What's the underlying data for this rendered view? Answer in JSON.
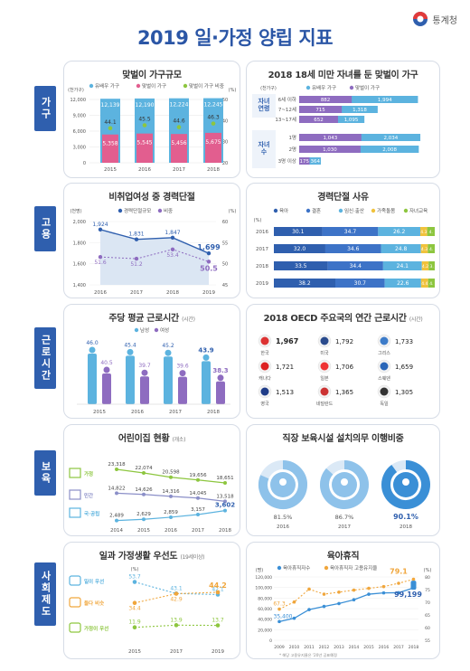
{
  "title": "2019 일·가정 양립 지표",
  "agency": "통계청",
  "sections": [
    "가구",
    "고용",
    "근로시간",
    "보육",
    "사회제도"
  ],
  "chart_data": [
    {
      "type": "bar",
      "title": "맞벌이 가구규모",
      "ylabel": "(천가구)",
      "y2label": "(%)",
      "categories": [
        "2015",
        "2016",
        "2017",
        "2018"
      ],
      "series": [
        {
          "name": "유배우 가구",
          "values": [
            12139,
            12190,
            12224,
            12245
          ]
        },
        {
          "name": "맞벌이 가구",
          "values": [
            5358,
            5545,
            5456,
            5675
          ]
        },
        {
          "name": "맞벌이 가구 비중",
          "values": [
            44.1,
            45.5,
            44.6,
            46.3
          ]
        }
      ],
      "yticks": [
        "12,000",
        "9,000",
        "6,000",
        "3,000",
        "0"
      ],
      "y2ticks": [
        "50",
        "40",
        "30",
        "20"
      ]
    },
    {
      "type": "bar",
      "title": "2018 18세 미만 자녀를 둔 맞벌이 가구",
      "unit": "(천가구)",
      "legend": [
        "유배우 가구",
        "맞벌이 가구"
      ],
      "group_labels": [
        "자녀 연령",
        "자녀 수"
      ],
      "categories": [
        "6세 이하",
        "7~12세",
        "13~17세",
        "1명",
        "2명",
        "3명 이상"
      ],
      "series": [
        {
          "name": "유배우 가구",
          "values": [
            1994,
            1318,
            1095,
            2034,
            2008,
            364
          ]
        },
        {
          "name": "맞벌이 가구",
          "values": [
            882,
            715,
            652,
            1043,
            1030,
            175
          ]
        }
      ]
    },
    {
      "type": "line",
      "title": "비취업여성 중 경력단절",
      "ylabel": "(천명)",
      "y2label": "(%)",
      "categories": [
        "2016",
        "2017",
        "2018",
        "2019"
      ],
      "series": [
        {
          "name": "경력단절규모",
          "values": [
            1924,
            1831,
            1847,
            1699
          ]
        },
        {
          "name": "비중",
          "values": [
            51.6,
            51.2,
            53.4,
            50.5
          ]
        }
      ],
      "yticks": [
        "2,000",
        "1,800",
        "1,600",
        "1,400"
      ],
      "y2ticks": [
        "60",
        "55",
        "50",
        "45"
      ]
    },
    {
      "type": "bar",
      "title": "경력단절 사유",
      "unit": "(%)",
      "legend": [
        "육아",
        "결혼",
        "임신·출산",
        "가족돌봄",
        "자녀교육"
      ],
      "categories": [
        "2016",
        "2017",
        "2018",
        "2019"
      ],
      "series": [
        {
          "name": "육아",
          "values": [
            30.1,
            32.0,
            33.5,
            38.2
          ]
        },
        {
          "name": "결혼",
          "values": [
            34.7,
            34.6,
            34.4,
            30.7
          ]
        },
        {
          "name": "임신·출산",
          "values": [
            26.2,
            24.8,
            24.1,
            22.6
          ]
        },
        {
          "name": "가족돌봄",
          "values": [
            4.3,
            4.3,
            4.2,
            4.4
          ]
        },
        {
          "name": "자녀교육",
          "values": [
            4.7,
            4.3,
            3.8,
            4.1
          ]
        }
      ],
      "labels": [
        [
          "30.1",
          "34.7",
          "26.2",
          "4.3",
          "4."
        ],
        [
          "32.0",
          "34.6",
          "24.8",
          "4.3",
          "4."
        ],
        [
          "33.5",
          "34.4",
          "24.1",
          "4.2",
          "3."
        ],
        [
          "38.2",
          "30.7",
          "22.6",
          "4.4",
          "4."
        ]
      ]
    },
    {
      "type": "bar",
      "title": "주당 평균 근로시간",
      "unit": "(시간)",
      "legend": [
        "남성",
        "여성"
      ],
      "categories": [
        "2015",
        "2016",
        "2017",
        "2018"
      ],
      "series": [
        {
          "name": "남성",
          "values": [
            46.0,
            45.4,
            45.2,
            43.9
          ]
        },
        {
          "name": "여성",
          "values": [
            40.5,
            39.7,
            39.6,
            38.3
          ]
        }
      ]
    },
    {
      "type": "table",
      "title": "2018 OECD 주요국의 연간 근로시간",
      "unit": "(시간)",
      "countries": [
        {
          "name": "한국",
          "value": "1,967"
        },
        {
          "name": "미국",
          "value": "1,792"
        },
        {
          "name": "그리스",
          "value": "1,733"
        },
        {
          "name": "캐나다",
          "value": "1,721"
        },
        {
          "name": "일본",
          "value": "1,706"
        },
        {
          "name": "스웨덴",
          "value": "1,659"
        },
        {
          "name": "영국",
          "value": "1,513"
        },
        {
          "name": "네덜란드",
          "value": "1,365"
        },
        {
          "name": "독일",
          "value": "1,305"
        }
      ]
    },
    {
      "type": "line",
      "title": "어린이집 현황",
      "unit": "(개소)",
      "categories": [
        "2014",
        "2015",
        "2016",
        "2017",
        "2018"
      ],
      "series": [
        {
          "name": "가정",
          "values": [
            23318,
            22074,
            20598,
            19656,
            18651
          ]
        },
        {
          "name": "민간",
          "values": [
            14822,
            14626,
            14316,
            14045,
            13518
          ]
        },
        {
          "name": "국·공립",
          "values": [
            2489,
            2629,
            2859,
            3157,
            3602
          ]
        }
      ]
    },
    {
      "type": "pie",
      "title": "직장 보육시설 설치의무 이행비중",
      "categories": [
        "2016",
        "2017",
        "2018"
      ],
      "values": [
        81.5,
        86.7,
        90.1
      ],
      "labels": [
        "81.5%",
        "86.7%",
        "90.1%"
      ]
    },
    {
      "type": "line",
      "title": "일과 가정생활 우선도",
      "unit": "(19세이상)",
      "ylabel": "(%)",
      "categories": [
        "2015",
        "2017",
        "2019"
      ],
      "series": [
        {
          "name": "일이 우선",
          "values": [
            53.7,
            43.1,
            42.1
          ]
        },
        {
          "name": "둘다 비슷",
          "values": [
            34.4,
            42.9,
            44.2
          ]
        },
        {
          "name": "가정이 우선",
          "values": [
            11.9,
            13.9,
            13.7
          ]
        }
      ]
    },
    {
      "type": "line",
      "title": "육아휴직",
      "ylabel": "(명)",
      "y2label": "(%)",
      "categories": [
        "2009",
        "2010",
        "2011",
        "2012",
        "2013",
        "2014",
        "2015",
        "2016",
        "2017",
        "2018"
      ],
      "series": [
        {
          "name": "육아휴직자수",
          "values": [
            35400,
            41700,
            58100,
            64100,
            69600,
            76800,
            87300,
            89800,
            90100,
            99199
          ]
        },
        {
          "name": "육아휴직자 고용유지율",
          "values": [
            67.3,
            70.1,
            75.2,
            73.2,
            74.0,
            74.8,
            75.5,
            76.2,
            77.5,
            79.1
          ]
        }
      ],
      "labels": {
        "first_count": "35,400",
        "last_count": "99,199",
        "first_rate": "67.3",
        "last_rate": "79.1"
      },
      "yticks": [
        "120,000",
        "100,000",
        "80,000",
        "60,000",
        "40,000",
        "20,000",
        "0"
      ],
      "y2ticks": [
        "80",
        "75",
        "70",
        "65",
        "60",
        "55"
      ],
      "note": "* 해당 고용유지율은 '20년 공표예정"
    }
  ],
  "colors": {
    "blue": "#2f5fae",
    "light": "#5cb3df",
    "purple": "#8e6cc0",
    "orange": "#f0a63c",
    "green": "#8dc63f",
    "pink": "#e25e8f"
  }
}
